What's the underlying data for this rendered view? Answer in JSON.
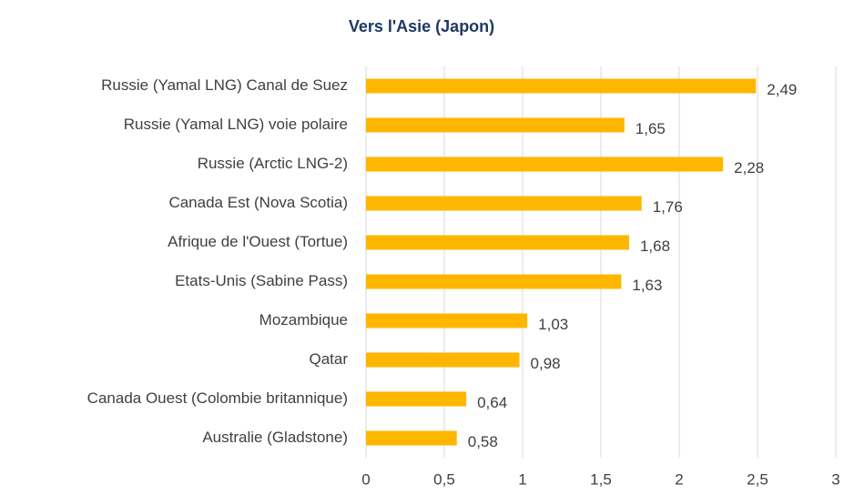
{
  "chart_data": {
    "type": "bar",
    "orientation": "horizontal",
    "title": "Vers l'Asie (Japon)",
    "categories": [
      "Russie (Yamal LNG) Canal de Suez",
      "Russie (Yamal LNG) voie polaire",
      "Russie (Arctic LNG-2)",
      "Canada Est (Nova Scotia)",
      "Afrique de l'Ouest (Tortue)",
      "Etats-Unis (Sabine Pass)",
      "Mozambique",
      "Qatar",
      "Canada Ouest (Colombie britannique)",
      "Australie (Gladstone)"
    ],
    "values": [
      2.49,
      1.65,
      2.28,
      1.76,
      1.68,
      1.63,
      1.03,
      0.98,
      0.64,
      0.58
    ],
    "value_labels": [
      "2,49",
      "1,65",
      "2,28",
      "1,76",
      "1,68",
      "1,63",
      "1,03",
      "0,98",
      "0,64",
      "0,58"
    ],
    "color": "#ffb600",
    "xlim": [
      0,
      3
    ],
    "xticks": [
      0,
      {
        "value": 0.5,
        "label": "0,5"
      },
      1,
      {
        "value": 1.5,
        "label": "1,5"
      },
      2,
      {
        "value": 2.5,
        "label": "2,5"
      },
      3
    ],
    "grid": true
  }
}
